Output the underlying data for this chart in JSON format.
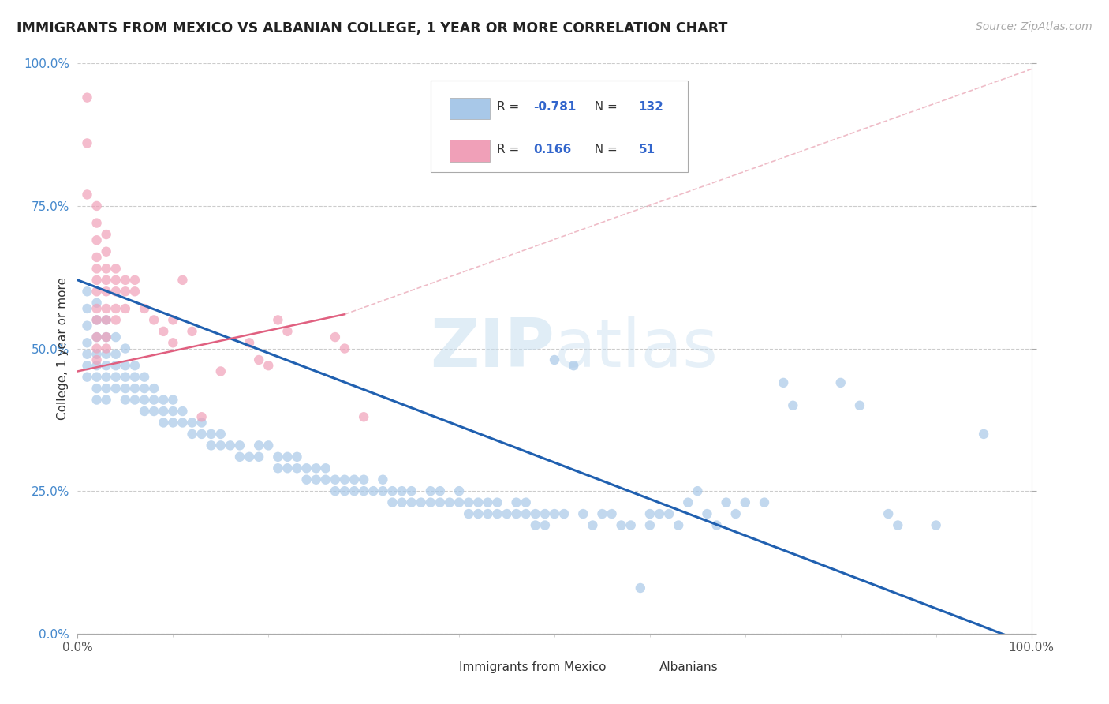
{
  "title": "IMMIGRANTS FROM MEXICO VS ALBANIAN COLLEGE, 1 YEAR OR MORE CORRELATION CHART",
  "source_text": "Source: ZipAtlas.com",
  "ylabel": "College, 1 year or more",
  "xlim": [
    0.0,
    1.0
  ],
  "ylim": [
    0.0,
    1.0
  ],
  "x_tick_labels": [
    "0.0%",
    "100.0%"
  ],
  "y_tick_labels": [
    "0.0%",
    "25.0%",
    "50.0%",
    "75.0%",
    "100.0%"
  ],
  "y_tick_values": [
    0.0,
    0.25,
    0.5,
    0.75,
    1.0
  ],
  "watermark_zip": "ZIP",
  "watermark_atlas": "atlas",
  "blue_color": "#a8c8e8",
  "pink_color": "#f0a0b8",
  "blue_line_color": "#2060b0",
  "pink_line_color": "#e06080",
  "pink_dash_color": "#e8a0b0",
  "blue_trendline": [
    [
      0.0,
      0.62
    ],
    [
      1.0,
      -0.02
    ]
  ],
  "pink_solid_trendline": [
    [
      0.0,
      0.46
    ],
    [
      0.28,
      0.56
    ]
  ],
  "pink_dash_trendline": [
    [
      0.28,
      0.56
    ],
    [
      1.0,
      0.99
    ]
  ],
  "blue_scatter": [
    [
      0.01,
      0.6
    ],
    [
      0.01,
      0.57
    ],
    [
      0.01,
      0.54
    ],
    [
      0.01,
      0.51
    ],
    [
      0.01,
      0.49
    ],
    [
      0.01,
      0.47
    ],
    [
      0.01,
      0.45
    ],
    [
      0.02,
      0.58
    ],
    [
      0.02,
      0.55
    ],
    [
      0.02,
      0.52
    ],
    [
      0.02,
      0.49
    ],
    [
      0.02,
      0.47
    ],
    [
      0.02,
      0.45
    ],
    [
      0.02,
      0.43
    ],
    [
      0.02,
      0.41
    ],
    [
      0.03,
      0.55
    ],
    [
      0.03,
      0.52
    ],
    [
      0.03,
      0.49
    ],
    [
      0.03,
      0.47
    ],
    [
      0.03,
      0.45
    ],
    [
      0.03,
      0.43
    ],
    [
      0.03,
      0.41
    ],
    [
      0.04,
      0.52
    ],
    [
      0.04,
      0.49
    ],
    [
      0.04,
      0.47
    ],
    [
      0.04,
      0.45
    ],
    [
      0.04,
      0.43
    ],
    [
      0.05,
      0.5
    ],
    [
      0.05,
      0.47
    ],
    [
      0.05,
      0.45
    ],
    [
      0.05,
      0.43
    ],
    [
      0.05,
      0.41
    ],
    [
      0.06,
      0.47
    ],
    [
      0.06,
      0.45
    ],
    [
      0.06,
      0.43
    ],
    [
      0.06,
      0.41
    ],
    [
      0.07,
      0.45
    ],
    [
      0.07,
      0.43
    ],
    [
      0.07,
      0.41
    ],
    [
      0.07,
      0.39
    ],
    [
      0.08,
      0.43
    ],
    [
      0.08,
      0.41
    ],
    [
      0.08,
      0.39
    ],
    [
      0.09,
      0.41
    ],
    [
      0.09,
      0.39
    ],
    [
      0.09,
      0.37
    ],
    [
      0.1,
      0.41
    ],
    [
      0.1,
      0.39
    ],
    [
      0.1,
      0.37
    ],
    [
      0.11,
      0.39
    ],
    [
      0.11,
      0.37
    ],
    [
      0.12,
      0.37
    ],
    [
      0.12,
      0.35
    ],
    [
      0.13,
      0.37
    ],
    [
      0.13,
      0.35
    ],
    [
      0.14,
      0.35
    ],
    [
      0.14,
      0.33
    ],
    [
      0.15,
      0.35
    ],
    [
      0.15,
      0.33
    ],
    [
      0.16,
      0.33
    ],
    [
      0.17,
      0.33
    ],
    [
      0.17,
      0.31
    ],
    [
      0.18,
      0.31
    ],
    [
      0.19,
      0.33
    ],
    [
      0.19,
      0.31
    ],
    [
      0.2,
      0.33
    ],
    [
      0.21,
      0.31
    ],
    [
      0.21,
      0.29
    ],
    [
      0.22,
      0.31
    ],
    [
      0.22,
      0.29
    ],
    [
      0.23,
      0.31
    ],
    [
      0.23,
      0.29
    ],
    [
      0.24,
      0.29
    ],
    [
      0.24,
      0.27
    ],
    [
      0.25,
      0.29
    ],
    [
      0.25,
      0.27
    ],
    [
      0.26,
      0.29
    ],
    [
      0.26,
      0.27
    ],
    [
      0.27,
      0.27
    ],
    [
      0.27,
      0.25
    ],
    [
      0.28,
      0.27
    ],
    [
      0.28,
      0.25
    ],
    [
      0.29,
      0.27
    ],
    [
      0.29,
      0.25
    ],
    [
      0.3,
      0.27
    ],
    [
      0.3,
      0.25
    ],
    [
      0.31,
      0.25
    ],
    [
      0.32,
      0.27
    ],
    [
      0.32,
      0.25
    ],
    [
      0.33,
      0.25
    ],
    [
      0.33,
      0.23
    ],
    [
      0.34,
      0.25
    ],
    [
      0.34,
      0.23
    ],
    [
      0.35,
      0.25
    ],
    [
      0.35,
      0.23
    ],
    [
      0.36,
      0.23
    ],
    [
      0.37,
      0.25
    ],
    [
      0.37,
      0.23
    ],
    [
      0.38,
      0.25
    ],
    [
      0.38,
      0.23
    ],
    [
      0.39,
      0.23
    ],
    [
      0.4,
      0.25
    ],
    [
      0.4,
      0.23
    ],
    [
      0.41,
      0.23
    ],
    [
      0.41,
      0.21
    ],
    [
      0.42,
      0.23
    ],
    [
      0.42,
      0.21
    ],
    [
      0.43,
      0.23
    ],
    [
      0.43,
      0.21
    ],
    [
      0.44,
      0.23
    ],
    [
      0.44,
      0.21
    ],
    [
      0.45,
      0.21
    ],
    [
      0.46,
      0.23
    ],
    [
      0.46,
      0.21
    ],
    [
      0.47,
      0.23
    ],
    [
      0.47,
      0.21
    ],
    [
      0.48,
      0.21
    ],
    [
      0.48,
      0.19
    ],
    [
      0.49,
      0.21
    ],
    [
      0.49,
      0.19
    ],
    [
      0.5,
      0.21
    ],
    [
      0.5,
      0.48
    ],
    [
      0.51,
      0.21
    ],
    [
      0.52,
      0.47
    ],
    [
      0.53,
      0.21
    ],
    [
      0.54,
      0.19
    ],
    [
      0.55,
      0.21
    ],
    [
      0.56,
      0.21
    ],
    [
      0.57,
      0.19
    ],
    [
      0.58,
      0.19
    ],
    [
      0.59,
      0.08
    ],
    [
      0.6,
      0.21
    ],
    [
      0.6,
      0.19
    ],
    [
      0.61,
      0.21
    ],
    [
      0.62,
      0.21
    ],
    [
      0.63,
      0.19
    ],
    [
      0.64,
      0.23
    ],
    [
      0.65,
      0.25
    ],
    [
      0.66,
      0.21
    ],
    [
      0.67,
      0.19
    ],
    [
      0.68,
      0.23
    ],
    [
      0.69,
      0.21
    ],
    [
      0.7,
      0.23
    ],
    [
      0.72,
      0.23
    ],
    [
      0.74,
      0.44
    ],
    [
      0.75,
      0.4
    ],
    [
      0.8,
      0.44
    ],
    [
      0.82,
      0.4
    ],
    [
      0.85,
      0.21
    ],
    [
      0.86,
      0.19
    ],
    [
      0.9,
      0.19
    ],
    [
      0.95,
      0.35
    ]
  ],
  "pink_scatter": [
    [
      0.01,
      0.94
    ],
    [
      0.01,
      0.86
    ],
    [
      0.01,
      0.77
    ],
    [
      0.02,
      0.75
    ],
    [
      0.02,
      0.72
    ],
    [
      0.02,
      0.69
    ],
    [
      0.02,
      0.66
    ],
    [
      0.02,
      0.64
    ],
    [
      0.02,
      0.62
    ],
    [
      0.02,
      0.6
    ],
    [
      0.02,
      0.57
    ],
    [
      0.02,
      0.55
    ],
    [
      0.02,
      0.52
    ],
    [
      0.02,
      0.5
    ],
    [
      0.02,
      0.48
    ],
    [
      0.03,
      0.7
    ],
    [
      0.03,
      0.67
    ],
    [
      0.03,
      0.64
    ],
    [
      0.03,
      0.62
    ],
    [
      0.03,
      0.6
    ],
    [
      0.03,
      0.57
    ],
    [
      0.03,
      0.55
    ],
    [
      0.03,
      0.52
    ],
    [
      0.03,
      0.5
    ],
    [
      0.04,
      0.64
    ],
    [
      0.04,
      0.62
    ],
    [
      0.04,
      0.6
    ],
    [
      0.04,
      0.57
    ],
    [
      0.04,
      0.55
    ],
    [
      0.05,
      0.62
    ],
    [
      0.05,
      0.6
    ],
    [
      0.05,
      0.57
    ],
    [
      0.06,
      0.62
    ],
    [
      0.06,
      0.6
    ],
    [
      0.07,
      0.57
    ],
    [
      0.08,
      0.55
    ],
    [
      0.09,
      0.53
    ],
    [
      0.1,
      0.51
    ],
    [
      0.11,
      0.62
    ],
    [
      0.12,
      0.53
    ],
    [
      0.13,
      0.38
    ],
    [
      0.18,
      0.51
    ],
    [
      0.19,
      0.48
    ],
    [
      0.2,
      0.47
    ],
    [
      0.21,
      0.55
    ],
    [
      0.22,
      0.53
    ],
    [
      0.27,
      0.52
    ],
    [
      0.28,
      0.5
    ],
    [
      0.3,
      0.38
    ],
    [
      0.1,
      0.55
    ],
    [
      0.15,
      0.46
    ]
  ]
}
